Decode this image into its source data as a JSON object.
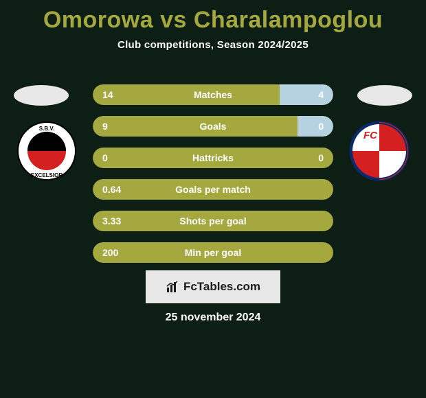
{
  "colors": {
    "background": "#0d1e14",
    "text": "#ffffff",
    "title": "#a5a83e",
    "bar_left": "#a5a83e",
    "bar_right": "#b6d2e1",
    "ellipse": "#e8e8e8",
    "brand_bg": "#e8e8e8",
    "brand_text": "#1a1a1a"
  },
  "title": "Omorowa vs Charalampoglou",
  "subtitle": "Club competitions, Season 2024/2025",
  "date": "25 november 2024",
  "brand": {
    "text": "FcTables.com"
  },
  "clubs": {
    "left": {
      "name": "SBV Excelsior",
      "logo_text_top": "S.B.V.",
      "logo_text_bottom": "EXCELSIOR",
      "outer": "#ffffff",
      "stripe_top": "#000000",
      "stripe_bottom": "#d42020"
    },
    "right": {
      "name": "FC Utrecht",
      "logo_text": "FC",
      "shield_red": "#d42020",
      "shield_white": "#ffffff",
      "outline": "#0a2a6b"
    }
  },
  "bars": [
    {
      "label": "Matches",
      "left_val": "14",
      "right_val": "4",
      "left_pct": 77.8,
      "right_pct": 22.2,
      "show_right": true
    },
    {
      "label": "Goals",
      "left_val": "9",
      "right_val": "0",
      "left_pct": 85,
      "right_pct": 15,
      "show_right": true
    },
    {
      "label": "Hattricks",
      "left_val": "0",
      "right_val": "0",
      "left_pct": 100,
      "right_pct": 0,
      "show_right": true
    },
    {
      "label": "Goals per match",
      "left_val": "0.64",
      "right_val": "",
      "left_pct": 100,
      "right_pct": 0,
      "show_right": false
    },
    {
      "label": "Shots per goal",
      "left_val": "3.33",
      "right_val": "",
      "left_pct": 100,
      "right_pct": 0,
      "show_right": false
    },
    {
      "label": "Min per goal",
      "left_val": "200",
      "right_val": "",
      "left_pct": 100,
      "right_pct": 0,
      "show_right": false
    }
  ]
}
